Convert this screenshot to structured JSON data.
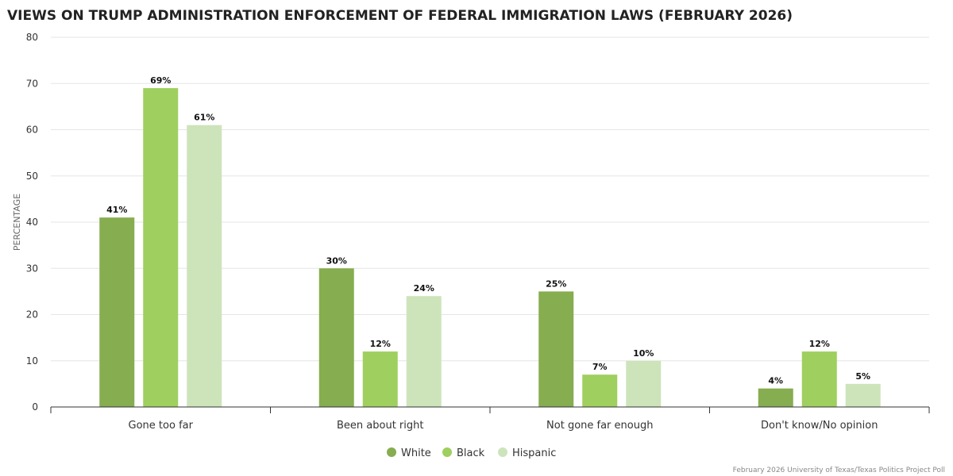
{
  "chart_data": {
    "type": "bar",
    "title": "VIEWS ON TRUMP ADMINISTRATION ENFORCEMENT OF FEDERAL IMMIGRATION LAWS (FEBRUARY 2026)",
    "xlabel": "",
    "ylabel": "PERCENTAGE",
    "ylim": [
      0,
      80
    ],
    "yticks": [
      0,
      10,
      20,
      30,
      40,
      50,
      60,
      70,
      80
    ],
    "grid": true,
    "legend_position": "bottom-center",
    "categories": [
      "Gone too far",
      "Been about right",
      "Not gone far enough",
      "Don't know/No opinion"
    ],
    "series": [
      {
        "name": "White",
        "color": "#86ad4f",
        "values": [
          41,
          30,
          25,
          4
        ],
        "labels": [
          "41%",
          "30%",
          "25%",
          "4%"
        ]
      },
      {
        "name": "Black",
        "color": "#9fcf5f",
        "values": [
          69,
          12,
          7,
          12
        ],
        "labels": [
          "69%",
          "12%",
          "7%",
          "12%"
        ]
      },
      {
        "name": "Hispanic",
        "color": "#cde4bb",
        "values": [
          61,
          24,
          10,
          5
        ],
        "labels": [
          "61%",
          "24%",
          "10%",
          "5%"
        ]
      }
    ],
    "credit": "February 2026 University of Texas/Texas Politics Project Poll"
  }
}
